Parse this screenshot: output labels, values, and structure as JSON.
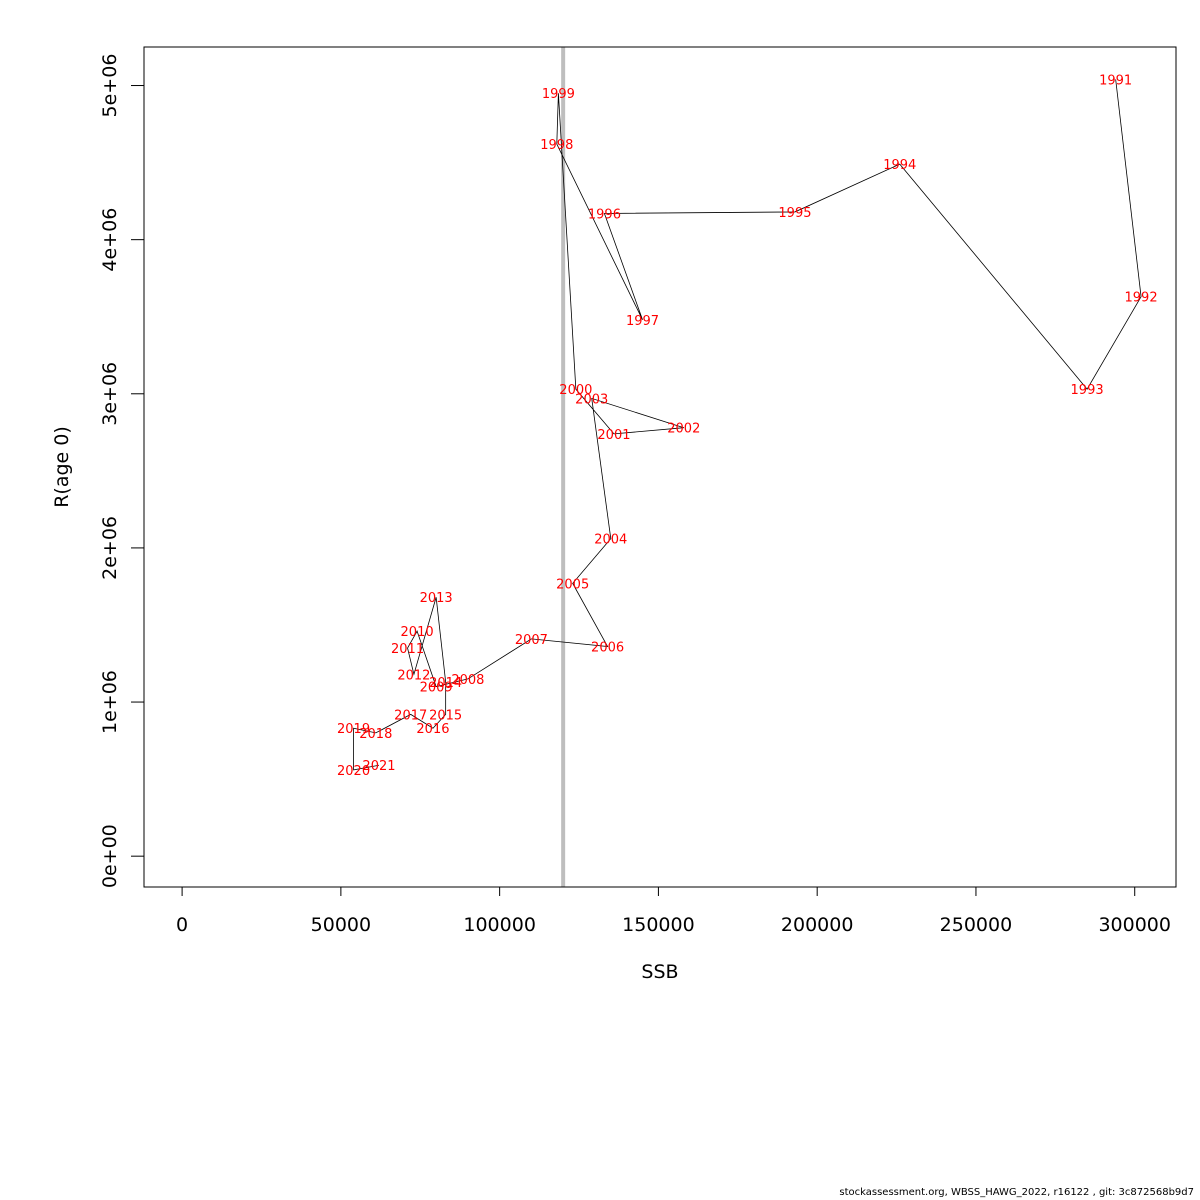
{
  "chart_data": {
    "type": "line",
    "title": "",
    "xlabel": "SSB",
    "ylabel": "R(age 0)",
    "xlim": [
      -12000,
      313000
    ],
    "ylim": [
      -200000,
      5250000
    ],
    "x_ticks": [
      0,
      50000,
      100000,
      150000,
      200000,
      250000,
      300000
    ],
    "x_tick_labels": [
      "0",
      "50000",
      "100000",
      "150000",
      "200000",
      "250000",
      "300000"
    ],
    "y_ticks": [
      0,
      1000000,
      2000000,
      3000000,
      4000000,
      5000000
    ],
    "y_tick_labels": [
      "0e+00",
      "1e+06",
      "2e+06",
      "3e+06",
      "4e+06",
      "5e+06"
    ],
    "reference_line": {
      "axis": "x",
      "value": 120000,
      "color": "#bebebe"
    },
    "line_color": "#000000",
    "label_color": "#ff0000",
    "points": [
      {
        "year": "1991",
        "ssb": 294000,
        "r": 5040000
      },
      {
        "year": "1992",
        "ssb": 302000,
        "r": 3630000
      },
      {
        "year": "1993",
        "ssb": 285000,
        "r": 3030000
      },
      {
        "year": "1994",
        "ssb": 226000,
        "r": 4490000
      },
      {
        "year": "1995",
        "ssb": 193000,
        "r": 4180000
      },
      {
        "year": "1996",
        "ssb": 133000,
        "r": 4170000
      },
      {
        "year": "1997",
        "ssb": 145000,
        "r": 3480000
      },
      {
        "year": "1998",
        "ssb": 118000,
        "r": 4620000
      },
      {
        "year": "1999",
        "ssb": 118500,
        "r": 4950000
      },
      {
        "year": "2000",
        "ssb": 124000,
        "r": 3030000
      },
      {
        "year": "2001",
        "ssb": 136000,
        "r": 2740000
      },
      {
        "year": "2002",
        "ssb": 158000,
        "r": 2780000
      },
      {
        "year": "2003",
        "ssb": 129000,
        "r": 2970000
      },
      {
        "year": "2004",
        "ssb": 135000,
        "r": 2060000
      },
      {
        "year": "2005",
        "ssb": 123000,
        "r": 1770000
      },
      {
        "year": "2006",
        "ssb": 134000,
        "r": 1360000
      },
      {
        "year": "2007",
        "ssb": 110000,
        "r": 1410000
      },
      {
        "year": "2008",
        "ssb": 90000,
        "r": 1150000
      },
      {
        "year": "2009",
        "ssb": 80000,
        "r": 1100000
      },
      {
        "year": "2010",
        "ssb": 74000,
        "r": 1460000
      },
      {
        "year": "2011",
        "ssb": 71000,
        "r": 1350000
      },
      {
        "year": "2012",
        "ssb": 73000,
        "r": 1180000
      },
      {
        "year": "2013",
        "ssb": 80000,
        "r": 1680000
      },
      {
        "year": "2014",
        "ssb": 83000,
        "r": 1130000
      },
      {
        "year": "2015",
        "ssb": 83000,
        "r": 920000
      },
      {
        "year": "2016",
        "ssb": 79000,
        "r": 830000
      },
      {
        "year": "2017",
        "ssb": 72000,
        "r": 920000
      },
      {
        "year": "2018",
        "ssb": 61000,
        "r": 800000
      },
      {
        "year": "2019",
        "ssb": 54000,
        "r": 830000
      },
      {
        "year": "2020",
        "ssb": 54000,
        "r": 560000
      },
      {
        "year": "2021",
        "ssb": 62000,
        "r": 590000
      }
    ]
  },
  "footer_text": "stockassessment.org, WBSS_HAWG_2022, r16122 , git: 3c872568b9d7"
}
